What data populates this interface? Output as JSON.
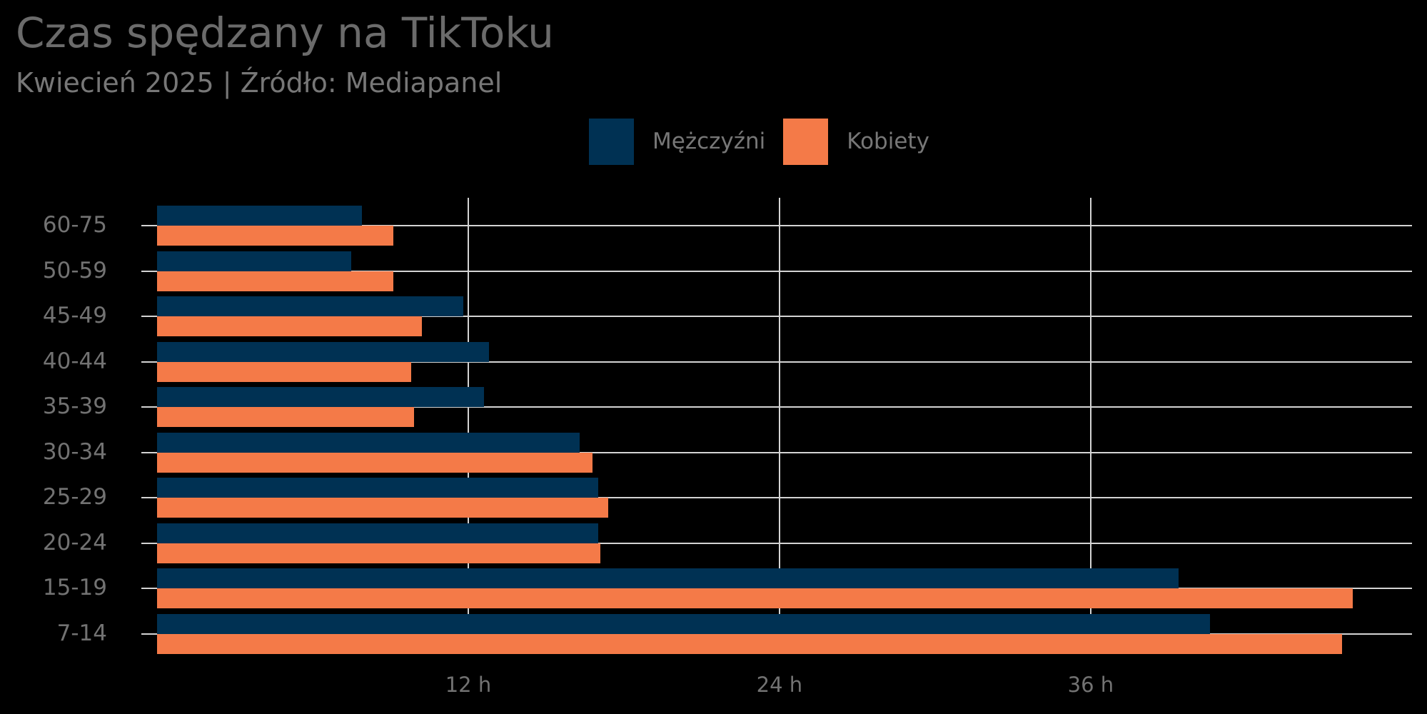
{
  "header": {
    "title": "Czas spędzany na TikToku",
    "subtitle": "Kwiecień 2025 | Źródło: Mediapanel"
  },
  "legend": [
    {
      "label": "Mężczyźni",
      "color": "#003153"
    },
    {
      "label": "Kobiety",
      "color": "#f47a48"
    }
  ],
  "colors": {
    "background": "#000000",
    "grid": "#d4d4d4",
    "men": "#003153",
    "women": "#f47a48",
    "text": "#727272"
  },
  "x_ticks": [
    "12 h",
    "24 h",
    "36 h"
  ],
  "chart_data": {
    "type": "bar",
    "orientation": "horizontal",
    "title": "Czas spędzany na TikToku",
    "subtitle": "Kwiecień 2025 | Źródło: Mediapanel",
    "xlabel": "",
    "ylabel": "",
    "x_unit": "h",
    "categories": [
      "60-75",
      "50-59",
      "45-49",
      "40-44",
      "35-39",
      "30-34",
      "25-29",
      "20-24",
      "15-19",
      "7-14"
    ],
    "series": [
      {
        "name": "Mężczyźni",
        "color": "#003153",
        "values": [
          7.9,
          7.5,
          11.8,
          12.8,
          12.6,
          16.3,
          17.0,
          17.0,
          39.4,
          40.6
        ]
      },
      {
        "name": "Kobiety",
        "color": "#f47a48",
        "values": [
          9.1,
          9.1,
          10.2,
          9.8,
          9.9,
          16.8,
          17.4,
          17.1,
          46.1,
          45.7
        ]
      }
    ],
    "x_ticks": [
      12,
      24,
      36
    ],
    "x_tick_labels": [
      "12 h",
      "24 h",
      "36 h"
    ],
    "xlim": [
      0,
      48.5
    ],
    "grid": true,
    "legend_position": "top"
  }
}
